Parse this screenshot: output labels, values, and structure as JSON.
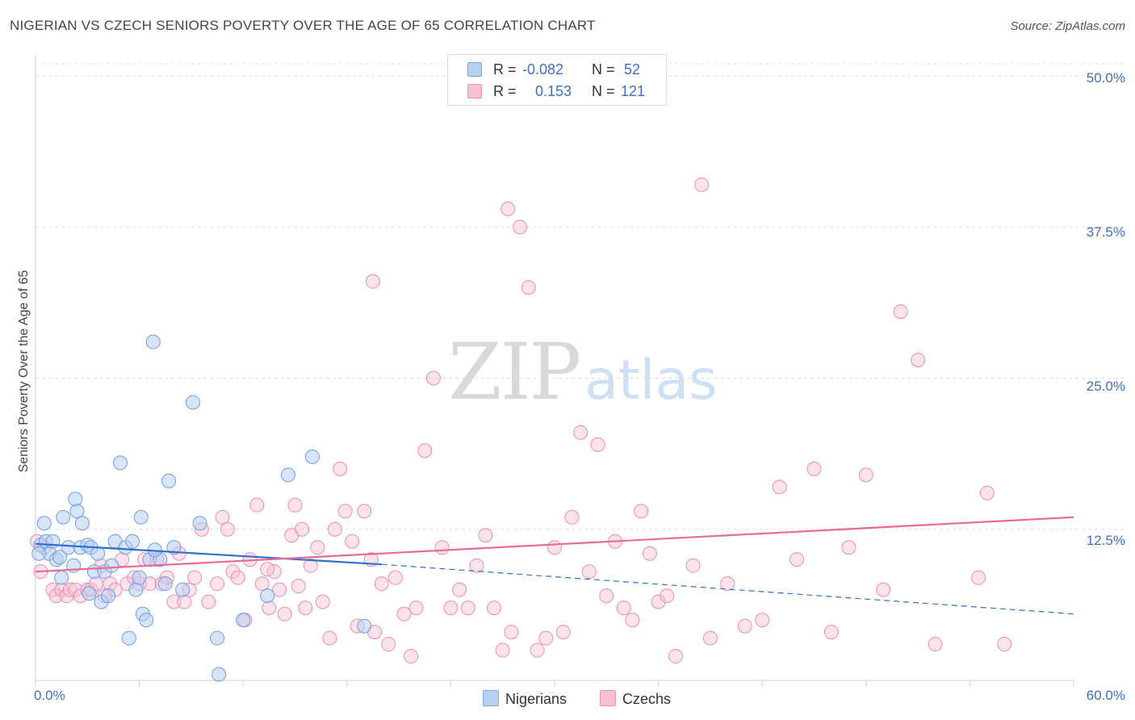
{
  "header": {
    "title": "NIGERIAN VS CZECH SENIORS POVERTY OVER THE AGE OF 65 CORRELATION CHART",
    "source": "Source: ZipAtlas.com"
  },
  "stats_box": {
    "row1": {
      "r_label": "R =",
      "r_value": "-0.082",
      "n_label": "N =",
      "n_value": "52"
    },
    "row2": {
      "r_label": "R =",
      "r_value": "0.153",
      "n_label": "N =",
      "n_value": "121"
    }
  },
  "legend": {
    "nigerians": "Nigerians",
    "czechs": "Czechs"
  },
  "watermark": {
    "zip": "ZIP",
    "atlas": "atlas"
  },
  "colors": {
    "nigerians_fill": "#b7cff3",
    "nigerians_stroke": "#6f9de0",
    "nigerians_line": "#2f6fd0",
    "czechs_fill": "#f8c0d3",
    "czechs_stroke": "#ea8cae",
    "czechs_line": "#e86a95",
    "grid": "#dedede",
    "tick_text": "#3f6fc4"
  },
  "chart_data": {
    "type": "scatter",
    "title": "NIGERIAN VS CZECH SENIORS POVERTY OVER THE AGE OF 65 CORRELATION CHART",
    "ylabel": "Seniors Poverty Over the Age of 65",
    "xlim": [
      0,
      60
    ],
    "ylim": [
      0,
      50
    ],
    "x_tick_labels": [
      "0.0%",
      "60.0%"
    ],
    "y_ticks": [
      12.5,
      25.0,
      37.5,
      50.0
    ],
    "y_tick_labels": [
      "12.5%",
      "25.0%",
      "37.5%",
      "50.0%"
    ],
    "grid": true,
    "legend_position": "bottom",
    "series": [
      {
        "name": "Nigerians",
        "r": -0.082,
        "n": 52,
        "trend": {
          "x0": 0,
          "y0": 11.3,
          "x1": 20,
          "y1": 9.6,
          "dashed_to_x": 60,
          "dashed_to_y": 5.5
        },
        "points": [
          [
            0.3,
            11.2
          ],
          [
            0.5,
            13.0
          ],
          [
            0.6,
            11.5
          ],
          [
            0.8,
            10.5
          ],
          [
            1.0,
            11.5
          ],
          [
            1.2,
            10.0
          ],
          [
            1.5,
            8.5
          ],
          [
            1.6,
            13.5
          ],
          [
            1.9,
            11.0
          ],
          [
            2.2,
            9.5
          ],
          [
            2.3,
            15.0
          ],
          [
            2.4,
            14.0
          ],
          [
            2.6,
            11.0
          ],
          [
            2.7,
            13.0
          ],
          [
            3.0,
            11.2
          ],
          [
            3.2,
            11.0
          ],
          [
            3.4,
            9.0
          ],
          [
            3.6,
            10.5
          ],
          [
            3.8,
            6.5
          ],
          [
            4.0,
            9.0
          ],
          [
            4.2,
            7.0
          ],
          [
            4.4,
            9.5
          ],
          [
            4.6,
            11.5
          ],
          [
            4.9,
            18.0
          ],
          [
            5.2,
            11.0
          ],
          [
            5.4,
            3.5
          ],
          [
            5.6,
            11.5
          ],
          [
            5.8,
            7.5
          ],
          [
            6.0,
            8.5
          ],
          [
            6.1,
            13.5
          ],
          [
            6.2,
            5.5
          ],
          [
            6.4,
            5.0
          ],
          [
            6.6,
            10.0
          ],
          [
            6.8,
            28.0
          ],
          [
            7.2,
            10.0
          ],
          [
            7.5,
            8.0
          ],
          [
            7.7,
            16.5
          ],
          [
            8.0,
            11.0
          ],
          [
            8.5,
            7.5
          ],
          [
            9.1,
            23.0
          ],
          [
            9.5,
            13.0
          ],
          [
            10.5,
            3.5
          ],
          [
            10.6,
            0.5
          ],
          [
            12.0,
            5.0
          ],
          [
            13.4,
            7.0
          ],
          [
            14.6,
            17.0
          ],
          [
            16.0,
            18.5
          ],
          [
            19.0,
            4.5
          ],
          [
            0.2,
            10.5
          ],
          [
            1.4,
            10.2
          ],
          [
            3.1,
            7.2
          ],
          [
            6.9,
            10.8
          ]
        ]
      },
      {
        "name": "Czechs",
        "r": 0.153,
        "n": 121,
        "trend": {
          "x0": 0,
          "y0": 9.0,
          "x1": 60,
          "y1": 13.5
        },
        "points": [
          [
            0.1,
            11.5
          ],
          [
            0.3,
            9.0
          ],
          [
            0.5,
            11.0
          ],
          [
            1.0,
            7.5
          ],
          [
            1.2,
            7.0
          ],
          [
            1.5,
            7.5
          ],
          [
            1.8,
            7.0
          ],
          [
            2.0,
            7.5
          ],
          [
            2.3,
            7.5
          ],
          [
            2.6,
            7.0
          ],
          [
            3.0,
            7.5
          ],
          [
            3.2,
            7.5
          ],
          [
            3.5,
            8.0
          ],
          [
            3.8,
            9.5
          ],
          [
            4.0,
            7.0
          ],
          [
            4.3,
            8.0
          ],
          [
            4.6,
            7.5
          ],
          [
            5.0,
            10.0
          ],
          [
            5.3,
            8.0
          ],
          [
            5.7,
            8.5
          ],
          [
            6.0,
            8.0
          ],
          [
            6.3,
            10.0
          ],
          [
            6.6,
            8.0
          ],
          [
            7.0,
            10.0
          ],
          [
            7.3,
            8.0
          ],
          [
            7.6,
            8.5
          ],
          [
            8.0,
            6.5
          ],
          [
            8.3,
            10.5
          ],
          [
            8.6,
            6.5
          ],
          [
            8.9,
            7.5
          ],
          [
            9.2,
            8.5
          ],
          [
            9.6,
            12.5
          ],
          [
            10.0,
            6.5
          ],
          [
            10.5,
            8.0
          ],
          [
            10.8,
            13.5
          ],
          [
            11.1,
            12.5
          ],
          [
            11.4,
            9.0
          ],
          [
            11.7,
            8.5
          ],
          [
            12.1,
            5.0
          ],
          [
            12.4,
            10.0
          ],
          [
            12.8,
            14.5
          ],
          [
            13.1,
            8.0
          ],
          [
            13.5,
            6.0
          ],
          [
            13.8,
            9.0
          ],
          [
            14.1,
            7.5
          ],
          [
            14.4,
            5.5
          ],
          [
            14.8,
            12.0
          ],
          [
            15.0,
            14.5
          ],
          [
            15.4,
            12.5
          ],
          [
            15.6,
            6.0
          ],
          [
            15.9,
            9.5
          ],
          [
            16.3,
            11.0
          ],
          [
            16.6,
            6.5
          ],
          [
            17.0,
            3.5
          ],
          [
            17.3,
            12.5
          ],
          [
            17.6,
            17.5
          ],
          [
            17.9,
            14.0
          ],
          [
            18.3,
            11.5
          ],
          [
            18.6,
            4.5
          ],
          [
            19.0,
            14.0
          ],
          [
            19.4,
            10.0
          ],
          [
            19.6,
            4.0
          ],
          [
            20.0,
            8.0
          ],
          [
            20.4,
            3.0
          ],
          [
            20.8,
            8.5
          ],
          [
            21.3,
            5.5
          ],
          [
            21.7,
            2.0
          ],
          [
            22.0,
            6.0
          ],
          [
            22.5,
            19.0
          ],
          [
            23.0,
            25.0
          ],
          [
            23.5,
            11.0
          ],
          [
            24.0,
            6.0
          ],
          [
            24.5,
            7.5
          ],
          [
            25.0,
            6.0
          ],
          [
            25.5,
            9.5
          ],
          [
            26.0,
            12.0
          ],
          [
            26.5,
            6.0
          ],
          [
            27.0,
            2.5
          ],
          [
            27.5,
            4.0
          ],
          [
            28.0,
            37.5
          ],
          [
            28.5,
            32.5
          ],
          [
            29.0,
            2.5
          ],
          [
            29.5,
            3.5
          ],
          [
            30.0,
            11.0
          ],
          [
            30.5,
            4.0
          ],
          [
            31.0,
            13.5
          ],
          [
            31.5,
            20.5
          ],
          [
            32.0,
            9.0
          ],
          [
            32.5,
            19.5
          ],
          [
            33.0,
            7.0
          ],
          [
            33.5,
            11.5
          ],
          [
            34.0,
            6.0
          ],
          [
            34.5,
            5.0
          ],
          [
            35.0,
            14.0
          ],
          [
            35.5,
            10.5
          ],
          [
            36.0,
            6.5
          ],
          [
            36.5,
            7.0
          ],
          [
            37.0,
            2.0
          ],
          [
            38.0,
            9.5
          ],
          [
            39.0,
            3.5
          ],
          [
            40.0,
            8.0
          ],
          [
            41.0,
            4.5
          ],
          [
            42.0,
            5.0
          ],
          [
            43.0,
            16.0
          ],
          [
            44.0,
            10.0
          ],
          [
            45.0,
            17.5
          ],
          [
            46.0,
            4.0
          ],
          [
            47.0,
            11.0
          ],
          [
            48.0,
            17.0
          ],
          [
            49.0,
            7.5
          ],
          [
            50.0,
            30.5
          ],
          [
            51.0,
            26.5
          ],
          [
            52.0,
            3.0
          ],
          [
            54.5,
            8.5
          ],
          [
            55.0,
            15.5
          ],
          [
            56.0,
            3.0
          ],
          [
            38.5,
            41.0
          ],
          [
            19.5,
            33.0
          ],
          [
            27.3,
            39.0
          ],
          [
            13.4,
            9.2
          ],
          [
            15.2,
            7.8
          ]
        ]
      }
    ]
  }
}
